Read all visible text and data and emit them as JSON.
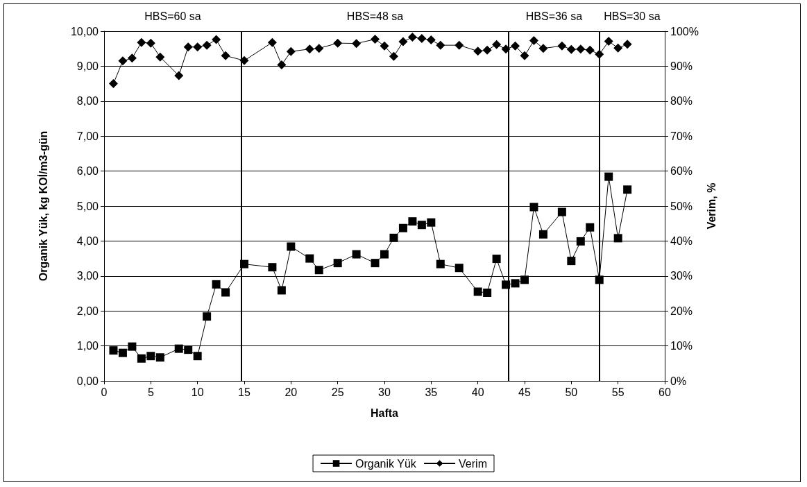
{
  "chart_data": {
    "type": "line",
    "xlabel": "Hafta",
    "ylabel": "Organik Yük, kg KOİ/m3-gün",
    "y2label": "Verim, %",
    "xlim": [
      0,
      60
    ],
    "xticks": [
      0,
      5,
      10,
      15,
      20,
      25,
      30,
      35,
      40,
      45,
      50,
      55,
      60
    ],
    "ylim": [
      0,
      10
    ],
    "yticks": [
      {
        "value": 0,
        "label": "0,00"
      },
      {
        "value": 1,
        "label": "1,00"
      },
      {
        "value": 2,
        "label": "2,00"
      },
      {
        "value": 3,
        "label": "3,00"
      },
      {
        "value": 4,
        "label": "4,00"
      },
      {
        "value": 5,
        "label": "5,00"
      },
      {
        "value": 6,
        "label": "6,00"
      },
      {
        "value": 7,
        "label": "7,00"
      },
      {
        "value": 8,
        "label": "8,00"
      },
      {
        "value": 9,
        "label": "9,00"
      },
      {
        "value": 10,
        "label": "10,00"
      }
    ],
    "y2lim": [
      0,
      100
    ],
    "y2ticks": [
      {
        "value": 0,
        "label": "0%"
      },
      {
        "value": 10,
        "label": "10%"
      },
      {
        "value": 20,
        "label": "20%"
      },
      {
        "value": 30,
        "label": "30%"
      },
      {
        "value": 40,
        "label": "40%"
      },
      {
        "value": 50,
        "label": "50%"
      },
      {
        "value": 60,
        "label": "60%"
      },
      {
        "value": 70,
        "label": "70%"
      },
      {
        "value": 80,
        "label": "80%"
      },
      {
        "value": 90,
        "label": "90%"
      },
      {
        "value": 100,
        "label": "100%"
      }
    ],
    "x": [
      1,
      2,
      3,
      4,
      5,
      6,
      8,
      9,
      10,
      11,
      12,
      13,
      15,
      18,
      19,
      20,
      22,
      23,
      25,
      27,
      29,
      30,
      31,
      32,
      33,
      34,
      35,
      36,
      38,
      40,
      41,
      42,
      43,
      44,
      45,
      46,
      47,
      49,
      50,
      51,
      52,
      53,
      54,
      55,
      56
    ],
    "series": [
      {
        "name": "Organik Yük",
        "color": "#000000",
        "marker": "square",
        "values": [
          0.87,
          0.8,
          0.98,
          0.64,
          0.71,
          0.67,
          0.92,
          0.89,
          0.71,
          1.84,
          2.76,
          2.53,
          3.34,
          3.25,
          2.59,
          3.84,
          3.5,
          3.17,
          3.37,
          3.62,
          3.37,
          3.62,
          4.09,
          4.37,
          4.56,
          4.46,
          4.53,
          3.34,
          3.23,
          2.55,
          2.52,
          3.49,
          2.75,
          2.79,
          2.89,
          4.97,
          4.19,
          4.83,
          3.43,
          3.99,
          4.39,
          2.89,
          5.84,
          4.08,
          5.47
        ]
      },
      {
        "name": "Verim",
        "color": "#000000",
        "marker": "diamond",
        "axis": "y2",
        "values": [
          85.0,
          91.5,
          92.3,
          96.8,
          96.6,
          92.6,
          87.3,
          95.5,
          95.5,
          96.0,
          97.6,
          93.0,
          91.6,
          96.8,
          90.4,
          94.2,
          94.9,
          95.1,
          96.6,
          96.5,
          97.7,
          95.8,
          92.8,
          97.0,
          98.3,
          97.9,
          97.5,
          96.0,
          96.0,
          94.3,
          94.6,
          96.2,
          94.9,
          95.8,
          93.0,
          97.3,
          95.1,
          95.8,
          94.8,
          94.9,
          94.6,
          93.4,
          97.1,
          95.2,
          96.3
        ]
      }
    ],
    "ref_lines": [
      {
        "axis": "x",
        "value": 14.7,
        "color": "#000000"
      },
      {
        "axis": "x",
        "value": 43.3,
        "color": "#000000"
      },
      {
        "axis": "x",
        "value": 53.0,
        "color": "#000000"
      }
    ],
    "annotations": [
      "HBS=60 sa",
      "HBS=48 sa",
      "HBS=36 sa",
      "HBS=30 sa"
    ],
    "grid": "y",
    "legend": "bottom",
    "line_style": "solid"
  }
}
